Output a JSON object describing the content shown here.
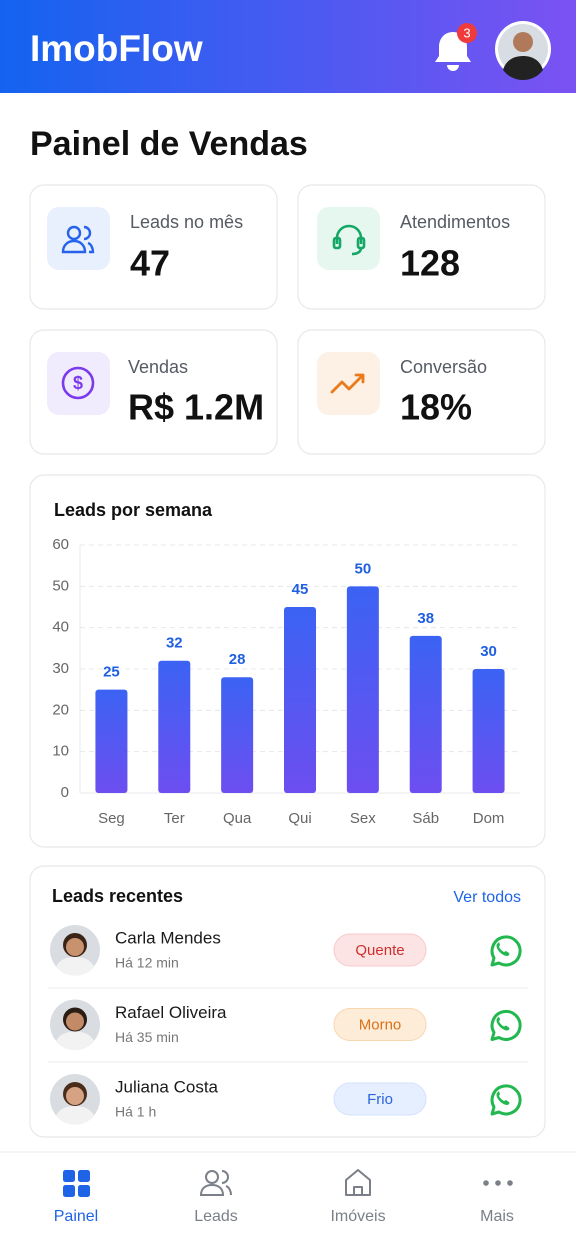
{
  "header": {
    "title": "ImobFlow",
    "notifications": 3
  },
  "page_title": "Painel de Vendas",
  "stats": [
    {
      "label": "Leads no mês",
      "value": 47
    },
    {
      "label": "Atendimentos",
      "value": 128
    },
    {
      "label": "Vendas",
      "value": "R$ 1.2M"
    },
    {
      "label": "Conversão",
      "value": "18%"
    }
  ],
  "chart_data": {
    "type": "bar",
    "title": "Leads por semana",
    "categories": [
      "Seg",
      "Ter",
      "Qua",
      "Qui",
      "Sex",
      "Sáb",
      "Dom"
    ],
    "values": [
      25,
      32,
      28,
      45,
      50,
      38,
      30
    ],
    "color": "#3b63f3",
    "ylim": [
      0,
      60
    ],
    "yticks": [
      0,
      10,
      20,
      30,
      40,
      50,
      60
    ],
    "grid": true
  },
  "recent": {
    "title": "Leads recentes",
    "link": "Ver todos",
    "leads": [
      {
        "name": "Carla Mendes",
        "time": "Há 12 min",
        "status": "Quente"
      },
      {
        "name": "Rafael Oliveira",
        "time": "Há 35 min",
        "status": "Morno"
      },
      {
        "name": "Juliana Costa",
        "time": "Há 1 h",
        "status": "Frio"
      }
    ]
  },
  "nav": [
    {
      "label": "Painel"
    },
    {
      "label": "Leads"
    },
    {
      "label": "Imóveis"
    },
    {
      "label": "Mais"
    }
  ]
}
